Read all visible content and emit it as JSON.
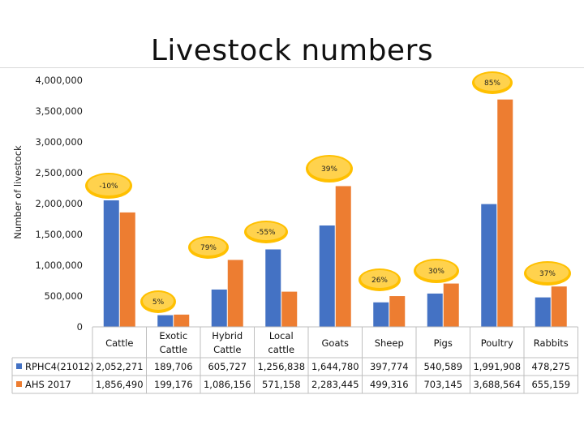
{
  "slide": {
    "title": "Livestock numbers"
  },
  "colors": {
    "series1": "#4472C4",
    "series2": "#ED7D31",
    "badge_fill": "#FFC000",
    "badge_inner": "#FFD24D",
    "grid": "#bfbfbf"
  },
  "chart_data": {
    "type": "bar",
    "title": "Livestock numbers",
    "ylabel": "Number of livestock",
    "ylim": [
      0,
      4000000
    ],
    "y_ticks": [
      "0",
      "500,000",
      "1,000,000",
      "1,500,000",
      "2,000,000",
      "2,500,000",
      "3,000,000",
      "3,500,000",
      "4,000,000"
    ],
    "categories": [
      [
        "Cattle"
      ],
      [
        "Exotic",
        "Cattle"
      ],
      [
        "Hybrid",
        "Cattle"
      ],
      [
        "Local",
        "cattle"
      ],
      [
        "Goats"
      ],
      [
        "Sheep"
      ],
      [
        "Pigs"
      ],
      [
        "Poultry"
      ],
      [
        "Rabbits"
      ]
    ],
    "series": [
      {
        "name": "RPHC4(21012)",
        "values": [
          2052271,
          189706,
          605727,
          1256838,
          1644780,
          397774,
          540589,
          1991908,
          478275
        ],
        "labels": [
          "2,052,271",
          "189,706",
          "605,727",
          "1,256,838",
          "1,644,780",
          "397,774",
          "540,589",
          "1,991,908",
          "478,275"
        ]
      },
      {
        "name": "AHS 2017",
        "values": [
          1856490,
          199176,
          1086156,
          571158,
          2283445,
          499316,
          703145,
          3688564,
          655159
        ],
        "labels": [
          "1,856,490",
          "199,176",
          "1,086,156",
          "571,158",
          "2,283,445",
          "499,316",
          "703,145",
          "3,688,564",
          "655,159"
        ]
      }
    ],
    "annotations": [
      "-10%",
      "5%",
      "79%",
      "-55%",
      "39%",
      "26%",
      "30%",
      "85%",
      "37%"
    ]
  }
}
